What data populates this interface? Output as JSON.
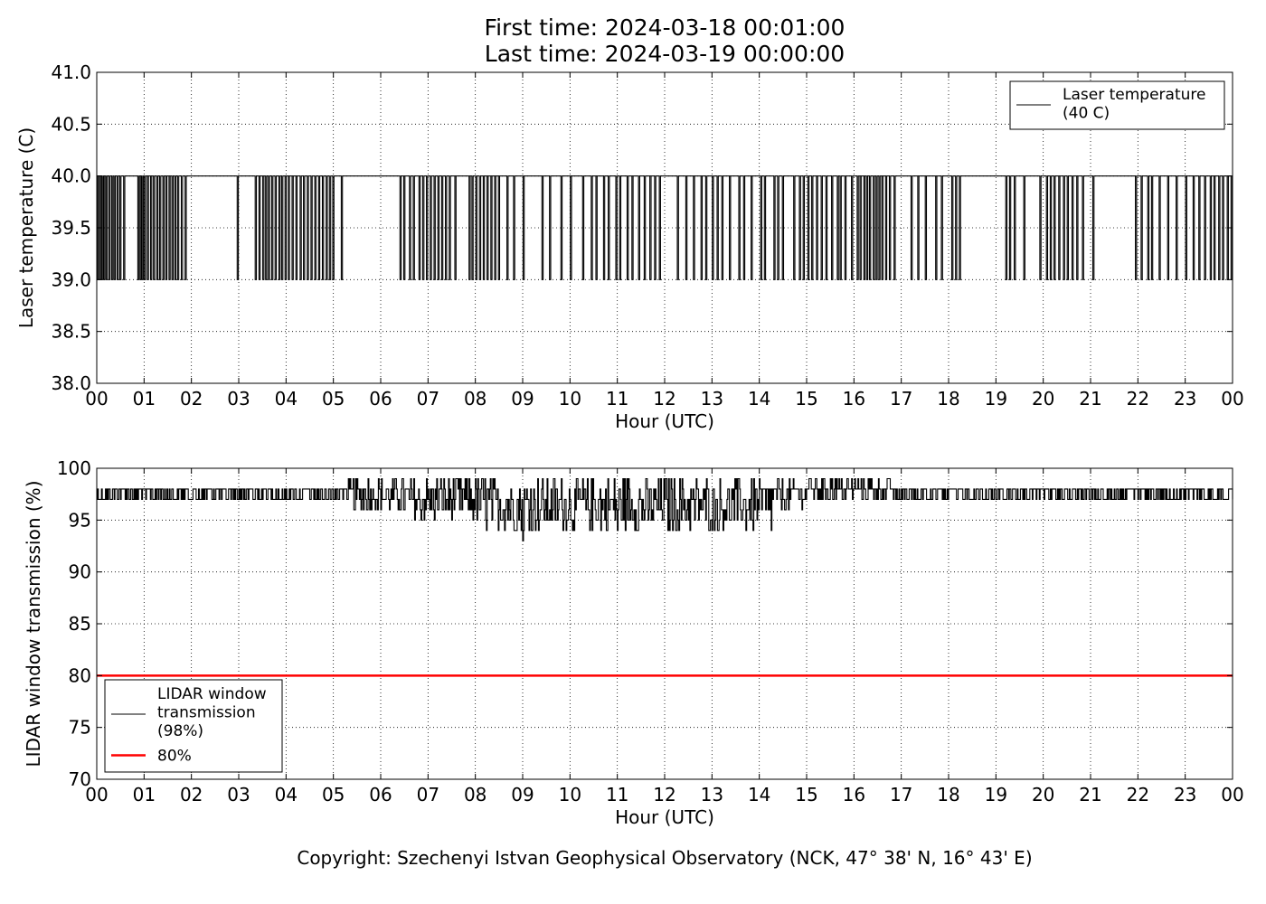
{
  "header": {
    "first_time": "First time: 2024-03-18 00:01:00",
    "last_time": "Last time: 2024-03-19 00:00:00"
  },
  "footer": {
    "copyright": "Copyright: Szechenyi Istvan Geophysical Observatory (NCK, 47° 38' N, 16° 43' E)"
  },
  "chart_data": [
    {
      "type": "line",
      "title": "",
      "xlabel": "Hour (UTC)",
      "ylabel": "Laser temperature (C)",
      "xlim": [
        0,
        24
      ],
      "ylim": [
        38.0,
        41.0
      ],
      "x_ticks": [
        "00",
        "01",
        "02",
        "03",
        "04",
        "05",
        "06",
        "07",
        "08",
        "09",
        "10",
        "11",
        "12",
        "13",
        "14",
        "15",
        "16",
        "17",
        "18",
        "19",
        "20",
        "21",
        "22",
        "23",
        "00"
      ],
      "y_ticks": [
        "38.0",
        "38.5",
        "39.0",
        "39.5",
        "40.0",
        "40.5",
        "41.0"
      ],
      "grid": true,
      "legend_position": "top-right",
      "series": [
        {
          "name": "Laser temperature\n(40 C)",
          "color": "#000000",
          "baseline": 40.0,
          "drop_value": 39.0,
          "drops_to_39_at_hours": [
            0.02,
            0.07,
            0.12,
            0.16,
            0.21,
            0.27,
            0.33,
            0.38,
            0.44,
            0.5,
            0.58,
            0.88,
            0.93,
            0.97,
            1.02,
            1.08,
            1.15,
            1.21,
            1.28,
            1.34,
            1.41,
            1.47,
            1.54,
            1.6,
            1.66,
            1.72,
            1.8,
            1.88,
            2.98,
            3.36,
            3.44,
            3.52,
            3.58,
            3.64,
            3.71,
            3.78,
            3.86,
            3.92,
            3.99,
            4.06,
            4.14,
            4.22,
            4.31,
            4.38,
            4.46,
            4.54,
            4.62,
            4.7,
            4.78,
            4.86,
            4.93,
            5.0,
            5.18,
            6.42,
            6.5,
            6.62,
            6.7,
            6.82,
            6.9,
            6.98,
            7.06,
            7.14,
            7.22,
            7.3,
            7.38,
            7.46,
            7.58,
            7.88,
            7.94,
            8.02,
            8.1,
            8.18,
            8.26,
            8.34,
            8.42,
            8.5,
            8.68,
            8.82,
            9.02,
            9.42,
            9.58,
            9.82,
            10.02,
            10.28,
            10.46,
            10.56,
            10.72,
            10.82,
            10.98,
            11.06,
            11.22,
            11.32,
            11.46,
            11.58,
            11.7,
            11.8,
            11.9,
            12.28,
            12.46,
            12.62,
            12.78,
            12.88,
            13.02,
            13.12,
            13.22,
            13.38,
            13.58,
            13.68,
            13.84,
            14.04,
            14.12,
            14.32,
            14.4,
            14.5,
            14.74,
            14.86,
            14.94,
            15.04,
            15.12,
            15.22,
            15.32,
            15.42,
            15.54,
            15.66,
            15.72,
            15.82,
            15.96,
            16.08,
            16.14,
            16.22,
            16.28,
            16.34,
            16.42,
            16.48,
            16.54,
            16.6,
            16.68,
            16.76,
            16.86,
            17.22,
            17.36,
            17.52,
            17.74,
            17.86,
            18.08,
            18.16,
            18.24,
            19.22,
            19.3,
            19.4,
            19.6,
            19.94,
            20.08,
            20.16,
            20.24,
            20.34,
            20.44,
            20.52,
            20.62,
            20.72,
            20.84,
            21.06,
            21.96,
            22.08,
            22.22,
            22.3,
            22.46,
            22.64,
            22.82,
            23.02,
            23.18,
            23.3,
            23.42,
            23.54,
            23.62,
            23.72,
            23.8,
            23.9,
            23.98
          ]
        }
      ]
    },
    {
      "type": "line",
      "title": "",
      "xlabel": "Hour (UTC)",
      "ylabel": "LIDAR window transmission (%)",
      "xlim": [
        0,
        24
      ],
      "ylim": [
        70,
        100
      ],
      "x_ticks": [
        "00",
        "01",
        "02",
        "03",
        "04",
        "05",
        "06",
        "07",
        "08",
        "09",
        "10",
        "11",
        "12",
        "13",
        "14",
        "15",
        "16",
        "17",
        "18",
        "19",
        "20",
        "21",
        "22",
        "23",
        "00"
      ],
      "y_ticks": [
        "70",
        "75",
        "80",
        "85",
        "90",
        "95",
        "100"
      ],
      "grid": true,
      "legend_position": "bottom-left",
      "series": [
        {
          "name": "LIDAR window\ntransmission\n(98%)",
          "color": "#000000",
          "profile": [
            {
              "from": 0.0,
              "to": 5.3,
              "low": 97,
              "high": 98
            },
            {
              "from": 5.3,
              "to": 6.4,
              "low": 96,
              "high": 99
            },
            {
              "from": 6.4,
              "to": 8.2,
              "low": 95,
              "high": 99
            },
            {
              "from": 8.2,
              "to": 10.8,
              "low": 94,
              "high": 99
            },
            {
              "from": 10.8,
              "to": 14.2,
              "low": 94,
              "high": 99
            },
            {
              "from": 14.2,
              "to": 15.0,
              "low": 96,
              "high": 99
            },
            {
              "from": 15.0,
              "to": 16.8,
              "low": 97,
              "high": 99
            },
            {
              "from": 16.8,
              "to": 24.0,
              "low": 97,
              "high": 98
            }
          ],
          "notable_minima": [
            {
              "x": 9.0,
              "y": 93
            },
            {
              "x": 11.0,
              "y": 94
            },
            {
              "x": 14.25,
              "y": 94
            }
          ]
        },
        {
          "name": "80%",
          "color": "#ff0000",
          "constant": 80
        }
      ]
    }
  ]
}
